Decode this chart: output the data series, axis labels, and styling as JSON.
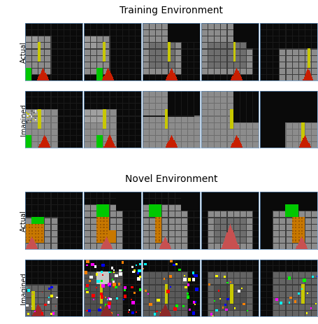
{
  "title_training": "Training Environment",
  "title_novel": "Novel Environment",
  "label_actual": "Actual",
  "label_imagined": "Imagined",
  "fig_bg": "#ffffff",
  "black": "#0a0a0a",
  "gray_room": "#888888",
  "gray_room_dark": "#686868",
  "gray_inner": "#b0b0b0",
  "green": "#00dd00",
  "yellow": "#cccc00",
  "red_tri": "#cc2200",
  "orange": "#cc7700",
  "pink_tri": "#cc6666",
  "grid_dark": "#222222",
  "grid_gray": "#666666"
}
